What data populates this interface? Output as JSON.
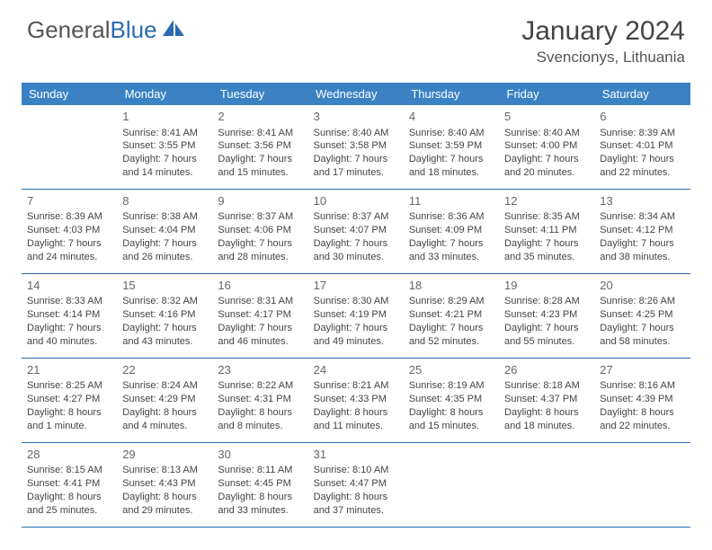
{
  "logo": {
    "text1": "General",
    "text2": "Blue"
  },
  "header": {
    "month": "January 2024",
    "location": "Svencionys, Lithuania"
  },
  "colors": {
    "header_bg": "#3b82c4",
    "border": "#2b6cb0",
    "text": "#444444"
  },
  "weekdays": [
    "Sunday",
    "Monday",
    "Tuesday",
    "Wednesday",
    "Thursday",
    "Friday",
    "Saturday"
  ],
  "weeks": [
    [
      null,
      {
        "n": "1",
        "sr": "Sunrise: 8:41 AM",
        "ss": "Sunset: 3:55 PM",
        "dl": "Daylight: 7 hours and 14 minutes."
      },
      {
        "n": "2",
        "sr": "Sunrise: 8:41 AM",
        "ss": "Sunset: 3:56 PM",
        "dl": "Daylight: 7 hours and 15 minutes."
      },
      {
        "n": "3",
        "sr": "Sunrise: 8:40 AM",
        "ss": "Sunset: 3:58 PM",
        "dl": "Daylight: 7 hours and 17 minutes."
      },
      {
        "n": "4",
        "sr": "Sunrise: 8:40 AM",
        "ss": "Sunset: 3:59 PM",
        "dl": "Daylight: 7 hours and 18 minutes."
      },
      {
        "n": "5",
        "sr": "Sunrise: 8:40 AM",
        "ss": "Sunset: 4:00 PM",
        "dl": "Daylight: 7 hours and 20 minutes."
      },
      {
        "n": "6",
        "sr": "Sunrise: 8:39 AM",
        "ss": "Sunset: 4:01 PM",
        "dl": "Daylight: 7 hours and 22 minutes."
      }
    ],
    [
      {
        "n": "7",
        "sr": "Sunrise: 8:39 AM",
        "ss": "Sunset: 4:03 PM",
        "dl": "Daylight: 7 hours and 24 minutes."
      },
      {
        "n": "8",
        "sr": "Sunrise: 8:38 AM",
        "ss": "Sunset: 4:04 PM",
        "dl": "Daylight: 7 hours and 26 minutes."
      },
      {
        "n": "9",
        "sr": "Sunrise: 8:37 AM",
        "ss": "Sunset: 4:06 PM",
        "dl": "Daylight: 7 hours and 28 minutes."
      },
      {
        "n": "10",
        "sr": "Sunrise: 8:37 AM",
        "ss": "Sunset: 4:07 PM",
        "dl": "Daylight: 7 hours and 30 minutes."
      },
      {
        "n": "11",
        "sr": "Sunrise: 8:36 AM",
        "ss": "Sunset: 4:09 PM",
        "dl": "Daylight: 7 hours and 33 minutes."
      },
      {
        "n": "12",
        "sr": "Sunrise: 8:35 AM",
        "ss": "Sunset: 4:11 PM",
        "dl": "Daylight: 7 hours and 35 minutes."
      },
      {
        "n": "13",
        "sr": "Sunrise: 8:34 AM",
        "ss": "Sunset: 4:12 PM",
        "dl": "Daylight: 7 hours and 38 minutes."
      }
    ],
    [
      {
        "n": "14",
        "sr": "Sunrise: 8:33 AM",
        "ss": "Sunset: 4:14 PM",
        "dl": "Daylight: 7 hours and 40 minutes."
      },
      {
        "n": "15",
        "sr": "Sunrise: 8:32 AM",
        "ss": "Sunset: 4:16 PM",
        "dl": "Daylight: 7 hours and 43 minutes."
      },
      {
        "n": "16",
        "sr": "Sunrise: 8:31 AM",
        "ss": "Sunset: 4:17 PM",
        "dl": "Daylight: 7 hours and 46 minutes."
      },
      {
        "n": "17",
        "sr": "Sunrise: 8:30 AM",
        "ss": "Sunset: 4:19 PM",
        "dl": "Daylight: 7 hours and 49 minutes."
      },
      {
        "n": "18",
        "sr": "Sunrise: 8:29 AM",
        "ss": "Sunset: 4:21 PM",
        "dl": "Daylight: 7 hours and 52 minutes."
      },
      {
        "n": "19",
        "sr": "Sunrise: 8:28 AM",
        "ss": "Sunset: 4:23 PM",
        "dl": "Daylight: 7 hours and 55 minutes."
      },
      {
        "n": "20",
        "sr": "Sunrise: 8:26 AM",
        "ss": "Sunset: 4:25 PM",
        "dl": "Daylight: 7 hours and 58 minutes."
      }
    ],
    [
      {
        "n": "21",
        "sr": "Sunrise: 8:25 AM",
        "ss": "Sunset: 4:27 PM",
        "dl": "Daylight: 8 hours and 1 minute."
      },
      {
        "n": "22",
        "sr": "Sunrise: 8:24 AM",
        "ss": "Sunset: 4:29 PM",
        "dl": "Daylight: 8 hours and 4 minutes."
      },
      {
        "n": "23",
        "sr": "Sunrise: 8:22 AM",
        "ss": "Sunset: 4:31 PM",
        "dl": "Daylight: 8 hours and 8 minutes."
      },
      {
        "n": "24",
        "sr": "Sunrise: 8:21 AM",
        "ss": "Sunset: 4:33 PM",
        "dl": "Daylight: 8 hours and 11 minutes."
      },
      {
        "n": "25",
        "sr": "Sunrise: 8:19 AM",
        "ss": "Sunset: 4:35 PM",
        "dl": "Daylight: 8 hours and 15 minutes."
      },
      {
        "n": "26",
        "sr": "Sunrise: 8:18 AM",
        "ss": "Sunset: 4:37 PM",
        "dl": "Daylight: 8 hours and 18 minutes."
      },
      {
        "n": "27",
        "sr": "Sunrise: 8:16 AM",
        "ss": "Sunset: 4:39 PM",
        "dl": "Daylight: 8 hours and 22 minutes."
      }
    ],
    [
      {
        "n": "28",
        "sr": "Sunrise: 8:15 AM",
        "ss": "Sunset: 4:41 PM",
        "dl": "Daylight: 8 hours and 25 minutes."
      },
      {
        "n": "29",
        "sr": "Sunrise: 8:13 AM",
        "ss": "Sunset: 4:43 PM",
        "dl": "Daylight: 8 hours and 29 minutes."
      },
      {
        "n": "30",
        "sr": "Sunrise: 8:11 AM",
        "ss": "Sunset: 4:45 PM",
        "dl": "Daylight: 8 hours and 33 minutes."
      },
      {
        "n": "31",
        "sr": "Sunrise: 8:10 AM",
        "ss": "Sunset: 4:47 PM",
        "dl": "Daylight: 8 hours and 37 minutes."
      },
      null,
      null,
      null
    ]
  ]
}
